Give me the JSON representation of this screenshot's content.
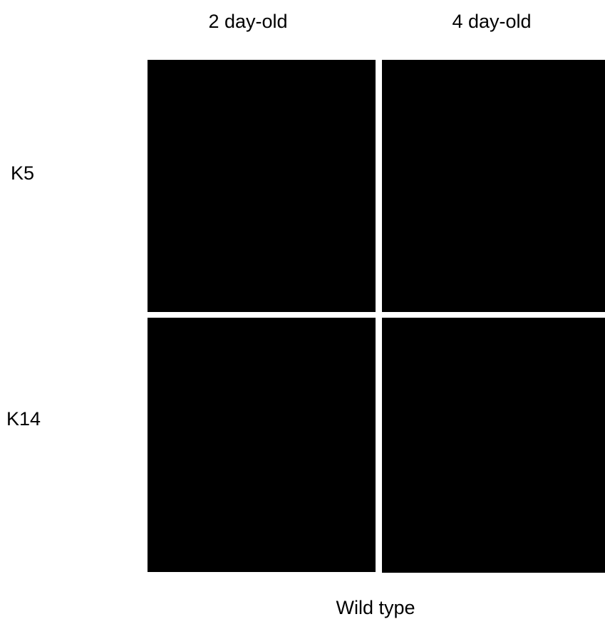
{
  "columns": [
    "2 day-old",
    "4 day-old"
  ],
  "rows": [
    "K5",
    "K14"
  ],
  "caption": "Wild type"
}
